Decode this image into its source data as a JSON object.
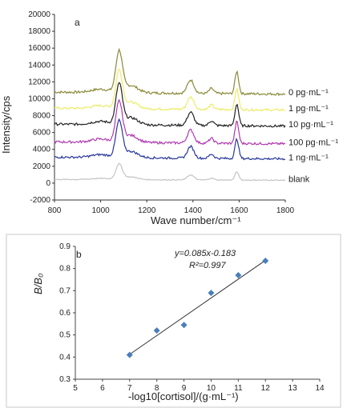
{
  "chart_data": [
    {
      "type": "line",
      "panel_label": "a",
      "xlabel": "Wave number/cm⁻¹",
      "ylabel": "Intensity/cps",
      "xlim": [
        800,
        1800
      ],
      "ylim": [
        -2000,
        20000
      ],
      "x_ticks": [
        "800",
        "1000",
        "1200",
        "1400",
        "1600",
        "1800"
      ],
      "y_ticks": [
        "-2000",
        "0",
        "2000",
        "4000",
        "6000",
        "8000",
        "10000",
        "12000",
        "14000",
        "16000",
        "18000",
        "20000"
      ],
      "grid": false,
      "series": [
        {
          "name": "0 pg·mL⁻¹",
          "color": "#8a8a3a",
          "baseline": 10700,
          "peak": 15500
        },
        {
          "name": "1 pg·mL⁻¹",
          "color": "#ecec6a",
          "baseline": 8800,
          "peak": 13200
        },
        {
          "name": "10 pg·mL⁻¹",
          "color": "#222222",
          "baseline": 6900,
          "peak": 11600
        },
        {
          "name": "100 pg·mL⁻¹",
          "color": "#b03ab0",
          "baseline": 4800,
          "peak": 9500
        },
        {
          "name": "1 ng·mL⁻¹",
          "color": "#27379a",
          "baseline": 3000,
          "peak": 7200
        },
        {
          "name": "blank",
          "color": "#c4c4c4",
          "baseline": 400,
          "peak": 2200
        }
      ],
      "peaks_cm-1": [
        1080,
        1390,
        1590
      ]
    },
    {
      "type": "scatter",
      "panel_label": "b",
      "xlabel": "-log10[cortisol]/(g·mL⁻¹)",
      "ylabel": "B/B₀",
      "xlim": [
        5,
        14
      ],
      "ylim": [
        0.3,
        0.9
      ],
      "x_ticks": [
        "5",
        "6",
        "7",
        "8",
        "9",
        "10",
        "11",
        "12",
        "13",
        "14"
      ],
      "y_ticks": [
        "0.3",
        "0.4",
        "0.5",
        "0.6",
        "0.7",
        "0.8",
        "0.9"
      ],
      "points": [
        {
          "x": 7,
          "y": 0.41
        },
        {
          "x": 8,
          "y": 0.52
        },
        {
          "x": 9,
          "y": 0.545
        },
        {
          "x": 10,
          "y": 0.69
        },
        {
          "x": 11,
          "y": 0.77
        },
        {
          "x": 12,
          "y": 0.835
        }
      ],
      "marker_color": "#4a7ebb",
      "fit": {
        "slope": 0.085,
        "intercept": -0.183,
        "x_range": [
          7,
          12
        ]
      },
      "equation": "y=0.085x-0.183",
      "r2": "R²=0.997"
    }
  ]
}
